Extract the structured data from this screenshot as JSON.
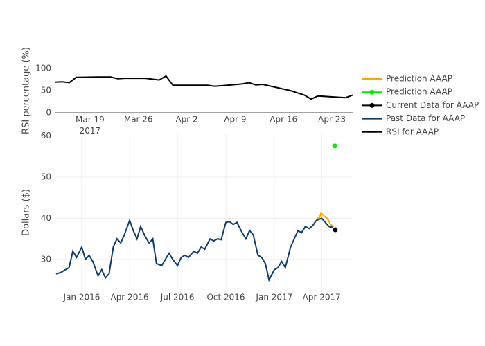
{
  "chart_data": [
    {
      "type": "line",
      "ylabel": "RSI percentage (%)",
      "xscale": "date",
      "xlim": [
        "2017-03-14",
        "2017-04-26"
      ],
      "ylim": [
        0,
        100
      ],
      "yticks": [
        0,
        50,
        100
      ],
      "grid": false,
      "xticks": [
        {
          "value": "2017-03-19",
          "label": "Mar 19\n2017"
        },
        {
          "value": "2017-03-26",
          "label": "Mar 26"
        },
        {
          "value": "2017-04-02",
          "label": "Apr 2"
        },
        {
          "value": "2017-04-09",
          "label": "Apr 9"
        },
        {
          "value": "2017-04-16",
          "label": "Apr 16"
        },
        {
          "value": "2017-04-23",
          "label": "Apr 23"
        }
      ],
      "series": [
        {
          "name": "RSI for AAAP",
          "color": "#000000",
          "markers": false,
          "x": [
            "2017-03-14",
            "2017-03-15",
            "2017-03-16",
            "2017-03-17",
            "2017-03-20",
            "2017-03-21",
            "2017-03-22",
            "2017-03-23",
            "2017-03-24",
            "2017-03-27",
            "2017-03-28",
            "2017-03-29",
            "2017-03-30",
            "2017-03-31",
            "2017-04-03",
            "2017-04-04",
            "2017-04-05",
            "2017-04-06",
            "2017-04-07",
            "2017-04-10",
            "2017-04-11",
            "2017-04-12",
            "2017-04-13",
            "2017-04-17",
            "2017-04-18",
            "2017-04-19",
            "2017-04-20",
            "2017-04-21",
            "2017-04-24",
            "2017-04-25",
            "2017-04-26"
          ],
          "values": [
            69,
            70,
            68,
            80,
            81,
            81,
            81,
            77,
            78,
            78,
            76,
            74,
            83,
            62,
            62,
            62,
            62,
            60,
            61,
            65,
            68,
            63,
            64,
            50,
            45,
            40,
            31,
            38,
            35,
            34,
            40
          ]
        }
      ]
    },
    {
      "type": "line",
      "ylabel": "Dollars ($)",
      "xscale": "date",
      "xlim": [
        "2015-11-12",
        "2017-05-30"
      ],
      "ylim": [
        22.4,
        60.6
      ],
      "yticks": [
        30,
        40,
        50,
        60
      ],
      "grid": true,
      "xticks": [
        {
          "value": "2016-01-01",
          "label": "Jan 2016"
        },
        {
          "value": "2016-04-01",
          "label": "Apr 2016"
        },
        {
          "value": "2016-07-01",
          "label": "Jul 2016"
        },
        {
          "value": "2016-10-01",
          "label": "Oct 2016"
        },
        {
          "value": "2017-01-01",
          "label": "Jan 2017"
        },
        {
          "value": "2017-04-01",
          "label": "Apr 2017"
        }
      ],
      "series": [
        {
          "name": "Prediction AAAP",
          "color": "#ffa500",
          "markers": false,
          "x": [
            "2017-03-24",
            "2017-03-28",
            "2017-03-31",
            "2017-04-06",
            "2017-04-12",
            "2017-04-18",
            "2017-04-24"
          ],
          "values": [
            40,
            40.2,
            41.3,
            40.5,
            40,
            38.5,
            38
          ]
        },
        {
          "name": "Prediction AAAP",
          "color": "#00ee00",
          "markers": true,
          "x": [
            "2017-04-26"
          ],
          "values": [
            57.6
          ]
        },
        {
          "name": "Current Data for AAAP",
          "color": "#000000",
          "markers": true,
          "x": [
            "2017-04-27"
          ],
          "values": [
            37.2
          ]
        },
        {
          "name": "Past Data for AAAP",
          "color": "#0d3b6a",
          "markers": false,
          "x": [
            "2015-11-13",
            "2015-11-22",
            "2015-12-01",
            "2015-12-08",
            "2015-12-15",
            "2015-12-22",
            "2016-01-01",
            "2016-01-08",
            "2016-01-15",
            "2016-01-22",
            "2016-02-01",
            "2016-02-08",
            "2016-02-15",
            "2016-02-22",
            "2016-03-01",
            "2016-03-08",
            "2016-03-15",
            "2016-03-22",
            "2016-04-01",
            "2016-04-08",
            "2016-04-15",
            "2016-04-22",
            "2016-05-01",
            "2016-05-08",
            "2016-05-15",
            "2016-05-22",
            "2016-06-01",
            "2016-06-08",
            "2016-06-15",
            "2016-06-22",
            "2016-07-01",
            "2016-07-08",
            "2016-07-15",
            "2016-07-22",
            "2016-08-01",
            "2016-08-08",
            "2016-08-15",
            "2016-08-22",
            "2016-09-01",
            "2016-09-08",
            "2016-09-15",
            "2016-09-22",
            "2016-10-01",
            "2016-10-08",
            "2016-10-15",
            "2016-10-22",
            "2016-11-01",
            "2016-11-08",
            "2016-11-15",
            "2016-11-22",
            "2016-12-01",
            "2016-12-08",
            "2016-12-15",
            "2016-12-22",
            "2017-01-01",
            "2017-01-08",
            "2017-01-15",
            "2017-01-22",
            "2017-02-01",
            "2017-02-08",
            "2017-02-15",
            "2017-02-22",
            "2017-03-01",
            "2017-03-08",
            "2017-03-15",
            "2017-03-22",
            "2017-04-01",
            "2017-04-08",
            "2017-04-15",
            "2017-04-22"
          ],
          "values": [
            26.5,
            26.8,
            27.5,
            28,
            32,
            30.5,
            33,
            30,
            31,
            29.5,
            26,
            27.5,
            25.5,
            26.5,
            33,
            35,
            34,
            36,
            39.5,
            37,
            35,
            38,
            35.5,
            34,
            35,
            29,
            28.5,
            30,
            31.5,
            30,
            28.5,
            30.5,
            31,
            30.5,
            32,
            31.5,
            33,
            32.5,
            35,
            34.5,
            35,
            34.8,
            39,
            39.2,
            38.5,
            39,
            36.5,
            35,
            37,
            36,
            31,
            30.5,
            29,
            25,
            27.5,
            28,
            29.5,
            28,
            33,
            35,
            37,
            36.5,
            38,
            37.5,
            38.2,
            39.5,
            40,
            39,
            38,
            37.8
          ]
        }
      ]
    }
  ]
}
